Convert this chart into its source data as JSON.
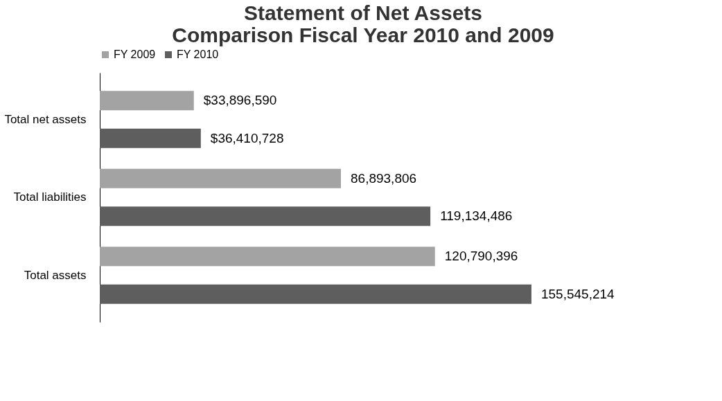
{
  "chart_data": {
    "type": "bar",
    "orientation": "horizontal",
    "title": "Statement of Net Assets\nComparison Fiscal Year 2010 and 2009",
    "categories": [
      "Total net assets",
      "Total liabilities",
      "Total assets"
    ],
    "series": [
      {
        "name": "FY 2009",
        "color": "#a3a3a3",
        "values": [
          33896590,
          86893806,
          120790396
        ],
        "value_labels": [
          "$33,896,590",
          "86,893,806",
          "120,790,396"
        ]
      },
      {
        "name": "FY 2010",
        "color": "#5e5e5e",
        "values": [
          36410728,
          119134486,
          155545214
        ],
        "value_labels": [
          "$36,410,728",
          "119,134,486",
          "155,545,214"
        ]
      }
    ],
    "legend": "top",
    "grid": false
  }
}
